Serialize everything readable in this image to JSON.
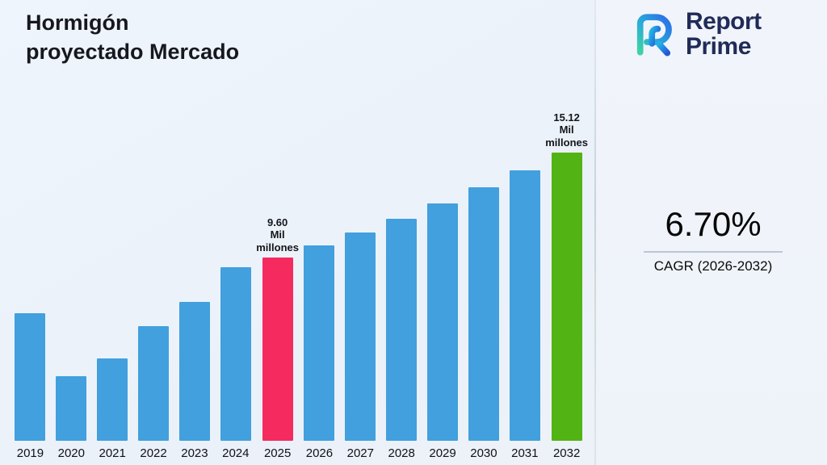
{
  "title": {
    "line1": "Hormigón",
    "line2": "proyectado Mercado"
  },
  "logo": {
    "word1": "Report",
    "word2": "Prime"
  },
  "cagr": {
    "value": "6.70%",
    "label": "CAGR (2026-2032)"
  },
  "chart_data": {
    "type": "bar",
    "title": "Hormigón proyectado Mercado",
    "unit": "Mil millones",
    "categories": [
      "2019",
      "2020",
      "2021",
      "2022",
      "2023",
      "2024",
      "2025",
      "2026",
      "2027",
      "2028",
      "2029",
      "2030",
      "2031",
      "2032"
    ],
    "values": [
      6.7,
      3.4,
      4.3,
      6.0,
      7.3,
      9.1,
      9.6,
      10.24,
      10.93,
      11.66,
      12.44,
      13.28,
      14.17,
      15.12
    ],
    "ylim": [
      0,
      15.12
    ],
    "grid": false,
    "legend": false,
    "bar_colors": {
      "default": "#41a0dd",
      "2025": "#f52a5f",
      "2032": "#52b414"
    },
    "annotations": [
      {
        "category": "2025",
        "lines": [
          "9.60",
          "Mil",
          "millones"
        ]
      },
      {
        "category": "2032",
        "lines": [
          "15.12",
          "Mil",
          "millones"
        ]
      }
    ]
  }
}
